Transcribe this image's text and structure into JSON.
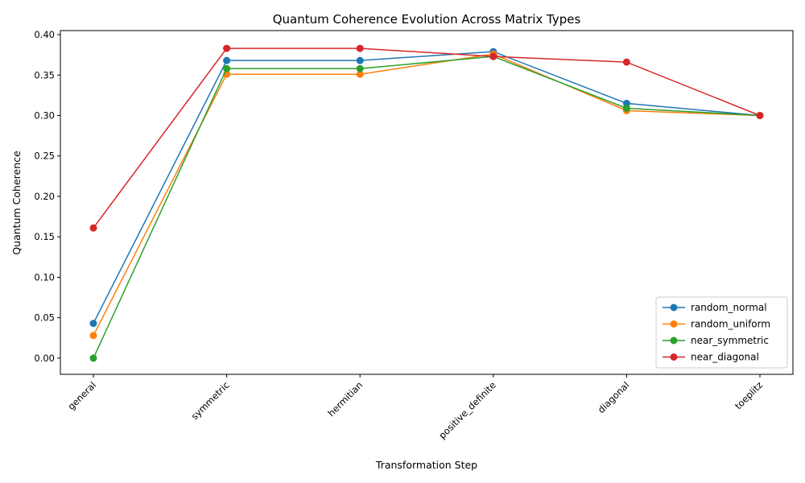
{
  "chart_data": {
    "type": "line",
    "title": "Quantum Coherence Evolution Across Matrix Types",
    "xlabel": "Transformation Step",
    "ylabel": "Quantum Coherence",
    "categories": [
      "general",
      "symmetric",
      "hermitian",
      "positive_definite",
      "diagonal",
      "toeplitz"
    ],
    "ylim": [
      -0.02,
      0.405
    ],
    "yticks": [
      0.0,
      0.05,
      0.1,
      0.15,
      0.2,
      0.25,
      0.3,
      0.35,
      0.4
    ],
    "ytick_labels": [
      "0.00",
      "0.05",
      "0.10",
      "0.15",
      "0.20",
      "0.25",
      "0.30",
      "0.35",
      "0.40"
    ],
    "grid": false,
    "legend_position": "bottom-right",
    "series": [
      {
        "name": "random_normal",
        "color": "#1f77b4",
        "values": [
          0.043,
          0.368,
          0.368,
          0.379,
          0.315,
          0.3
        ]
      },
      {
        "name": "random_uniform",
        "color": "#ff7f0e",
        "values": [
          0.028,
          0.351,
          0.351,
          0.376,
          0.306,
          0.3
        ]
      },
      {
        "name": "near_symmetric",
        "color": "#2ca02c",
        "values": [
          0.0,
          0.358,
          0.358,
          0.373,
          0.309,
          0.3
        ]
      },
      {
        "name": "near_diagonal",
        "color": "#d62728",
        "values": [
          0.161,
          0.383,
          0.383,
          0.373,
          0.366,
          0.3
        ]
      }
    ]
  }
}
